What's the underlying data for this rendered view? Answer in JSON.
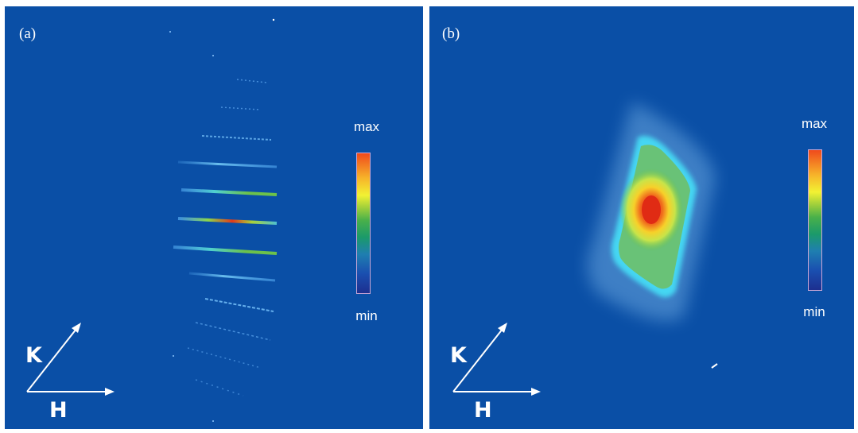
{
  "panels": [
    {
      "label": "(a)",
      "colorbar": {
        "max_label": "max",
        "min_label": "min"
      },
      "axes": {
        "k_label": "K",
        "h_label": "H"
      }
    },
    {
      "label": "(b)",
      "colorbar": {
        "max_label": "max",
        "min_label": "min"
      },
      "axes": {
        "k_label": "K",
        "h_label": "H"
      }
    }
  ],
  "colors": {
    "background": "#0a4fa6",
    "colormap": [
      "#1d2f8f",
      "#1a4fb0",
      "#1f7fb0",
      "#1b9a6a",
      "#49b04a",
      "#a8d23a",
      "#f2f233",
      "#f7b52a",
      "#ef4a1c"
    ]
  }
}
